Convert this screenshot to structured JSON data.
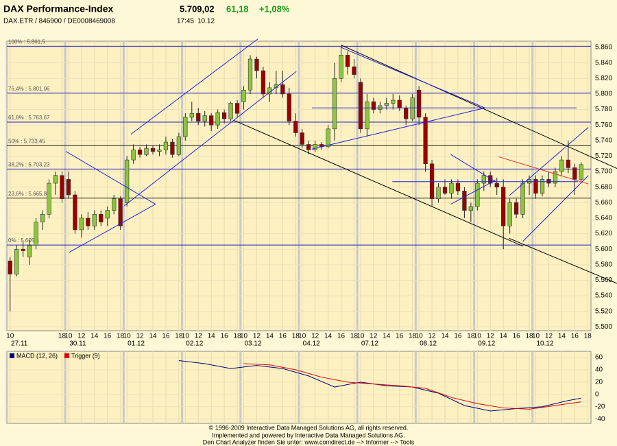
{
  "header": {
    "title": "DAX Performance-Index",
    "price": "5.709,02",
    "change": "61,18",
    "change_pct": "+1,08%",
    "ids": "DAX.ETR / 846900 / DE0008469008",
    "time": "17:45",
    "date": "10.12"
  },
  "chart_data": [
    {
      "type": "candlestick",
      "xlim": [
        -0.5,
        89.5
      ],
      "ylim": [
        5495,
        5868
      ],
      "yticks": [
        {
          "value": 5860,
          "label": "5.860"
        },
        {
          "value": 5840,
          "label": "5.840"
        },
        {
          "value": 5820,
          "label": "5.820"
        },
        {
          "value": 5800,
          "label": "5.800"
        },
        {
          "value": 5780,
          "label": "5.780"
        },
        {
          "value": 5760,
          "label": "5.760"
        },
        {
          "value": 5740,
          "label": "5.740"
        },
        {
          "value": 5720,
          "label": "5.720"
        },
        {
          "value": 5700,
          "label": "5.700"
        },
        {
          "value": 5680,
          "label": "5.680"
        },
        {
          "value": 5660,
          "label": "5.660"
        },
        {
          "value": 5640,
          "label": "5.640"
        },
        {
          "value": 5620,
          "label": "5.620"
        },
        {
          "value": 5600,
          "label": "5.600"
        },
        {
          "value": 5580,
          "label": "5.580"
        },
        {
          "value": 5560,
          "label": "5.560"
        },
        {
          "value": 5540,
          "label": "5.540"
        },
        {
          "value": 5520,
          "label": "5.520"
        },
        {
          "value": 5500,
          "label": "5.500"
        }
      ],
      "xticks": [
        {
          "value": 0,
          "label": "10"
        },
        {
          "value": 8,
          "label": "18"
        },
        {
          "value": 9,
          "label": "10"
        },
        {
          "value": 11,
          "label": "12"
        },
        {
          "value": 13,
          "label": "14"
        },
        {
          "value": 15,
          "label": "16"
        },
        {
          "value": 17,
          "label": "18"
        },
        {
          "value": 18,
          "label": "10"
        },
        {
          "value": 20,
          "label": "12"
        },
        {
          "value": 22,
          "label": "14"
        },
        {
          "value": 24,
          "label": "16"
        },
        {
          "value": 26,
          "label": "18"
        },
        {
          "value": 27,
          "label": "10"
        },
        {
          "value": 29,
          "label": "12"
        },
        {
          "value": 31,
          "label": "14"
        },
        {
          "value": 33,
          "label": "16"
        },
        {
          "value": 35,
          "label": "18"
        },
        {
          "value": 36,
          "label": "10"
        },
        {
          "value": 38,
          "label": "12"
        },
        {
          "value": 40,
          "label": "14"
        },
        {
          "value": 42,
          "label": "16"
        },
        {
          "value": 44,
          "label": "18"
        },
        {
          "value": 45,
          "label": "10"
        },
        {
          "value": 47,
          "label": "12"
        },
        {
          "value": 49,
          "label": "14"
        },
        {
          "value": 51,
          "label": "16"
        },
        {
          "value": 53,
          "label": "18"
        },
        {
          "value": 54,
          "label": "10"
        },
        {
          "value": 56,
          "label": "12"
        },
        {
          "value": 58,
          "label": "14"
        },
        {
          "value": 60,
          "label": "16"
        },
        {
          "value": 62,
          "label": "18"
        },
        {
          "value": 63,
          "label": "10"
        },
        {
          "value": 65,
          "label": "12"
        },
        {
          "value": 67,
          "label": "14"
        },
        {
          "value": 69,
          "label": "16"
        },
        {
          "value": 71,
          "label": "18"
        },
        {
          "value": 72,
          "label": "10"
        },
        {
          "value": 74,
          "label": "12"
        },
        {
          "value": 76,
          "label": "14"
        },
        {
          "value": 78,
          "label": "16"
        },
        {
          "value": 80,
          "label": "18"
        },
        {
          "value": 81,
          "label": "10"
        },
        {
          "value": 83,
          "label": "12"
        },
        {
          "value": 85,
          "label": "14"
        },
        {
          "value": 87,
          "label": "16"
        },
        {
          "value": 89,
          "label": "18"
        }
      ],
      "day_ticks": [
        {
          "value": 1,
          "label": "27.11"
        },
        {
          "value": 10,
          "label": "30.11"
        },
        {
          "value": 19,
          "label": "01.12"
        },
        {
          "value": 28,
          "label": "02.12"
        },
        {
          "value": 37,
          "label": "03.12"
        },
        {
          "value": 46,
          "label": "04.12"
        },
        {
          "value": 55,
          "label": "07.12"
        },
        {
          "value": 64,
          "label": "08.12"
        },
        {
          "value": 73,
          "label": "09.12"
        },
        {
          "value": 82,
          "label": "10.12"
        }
      ],
      "up_color": "#8cc63f",
      "down_color": "#9b0000",
      "open": [
        5585,
        5568,
        5600,
        5590,
        5605,
        5635,
        5645,
        5685,
        5695,
        5690,
        5670,
        5625,
        5640,
        5630,
        5645,
        5640,
        5650,
        5665,
        5660,
        5715,
        5728,
        5722,
        5730,
        5726,
        5728,
        5738,
        5722,
        5745,
        5770,
        5775,
        5765,
        5772,
        5760,
        5776,
        5768,
        5788,
        5790,
        5805,
        5845,
        5830,
        5800,
        5808,
        5812,
        5800,
        5765,
        5750,
        5735,
        5728,
        5735,
        5732,
        5755,
        5820,
        5850,
        5835,
        5815,
        5755,
        5790,
        5780,
        5785,
        5788,
        5792,
        5782,
        5768,
        5805,
        5770,
        5710,
        5665,
        5680,
        5672,
        5685,
        5675,
        5650,
        5655,
        5685,
        5695,
        5685,
        5680,
        5630,
        5660,
        5645,
        5685,
        5690,
        5672,
        5690,
        5685,
        5700,
        5715,
        5705,
        5690
      ],
      "high": [
        5590,
        5605,
        5610,
        5612,
        5640,
        5650,
        5690,
        5700,
        5700,
        5700,
        5675,
        5645,
        5648,
        5650,
        5650,
        5655,
        5670,
        5668,
        5720,
        5735,
        5732,
        5735,
        5733,
        5735,
        5745,
        5742,
        5750,
        5775,
        5790,
        5782,
        5778,
        5775,
        5780,
        5780,
        5790,
        5792,
        5810,
        5850,
        5848,
        5835,
        5815,
        5830,
        5830,
        5808,
        5775,
        5755,
        5740,
        5740,
        5738,
        5760,
        5840,
        5862,
        5855,
        5845,
        5820,
        5800,
        5795,
        5790,
        5795,
        5800,
        5798,
        5785,
        5800,
        5810,
        5775,
        5715,
        5685,
        5690,
        5690,
        5690,
        5680,
        5660,
        5690,
        5700,
        5700,
        5692,
        5690,
        5665,
        5665,
        5690,
        5695,
        5695,
        5695,
        5700,
        5705,
        5720,
        5740,
        5710,
        5712
      ],
      "low": [
        5520,
        5565,
        5590,
        5580,
        5600,
        5625,
        5640,
        5670,
        5660,
        5665,
        5620,
        5615,
        5625,
        5625,
        5630,
        5630,
        5645,
        5625,
        5655,
        5710,
        5718,
        5720,
        5722,
        5720,
        5722,
        5718,
        5720,
        5740,
        5765,
        5760,
        5758,
        5752,
        5755,
        5762,
        5765,
        5770,
        5780,
        5800,
        5820,
        5795,
        5790,
        5800,
        5795,
        5760,
        5745,
        5730,
        5722,
        5725,
        5728,
        5730,
        5740,
        5815,
        5825,
        5820,
        5750,
        5745,
        5775,
        5775,
        5780,
        5780,
        5778,
        5760,
        5765,
        5760,
        5700,
        5655,
        5660,
        5670,
        5665,
        5670,
        5640,
        5635,
        5650,
        5675,
        5680,
        5670,
        5600,
        5620,
        5640,
        5640,
        5670,
        5665,
        5668,
        5680,
        5680,
        5695,
        5698,
        5670,
        5685
      ],
      "close": [
        5568,
        5600,
        5598,
        5605,
        5635,
        5645,
        5685,
        5695,
        5665,
        5670,
        5625,
        5640,
        5630,
        5645,
        5635,
        5650,
        5665,
        5630,
        5715,
        5728,
        5722,
        5730,
        5726,
        5728,
        5738,
        5722,
        5745,
        5770,
        5775,
        5765,
        5772,
        5760,
        5776,
        5768,
        5788,
        5775,
        5805,
        5845,
        5830,
        5800,
        5808,
        5812,
        5800,
        5765,
        5750,
        5735,
        5728,
        5735,
        5732,
        5755,
        5820,
        5850,
        5835,
        5825,
        5755,
        5790,
        5780,
        5785,
        5788,
        5792,
        5782,
        5768,
        5795,
        5770,
        5710,
        5665,
        5680,
        5672,
        5685,
        5675,
        5650,
        5655,
        5685,
        5695,
        5685,
        5680,
        5630,
        5660,
        5645,
        5685,
        5690,
        5672,
        5690,
        5685,
        5700,
        5715,
        5705,
        5690,
        5709
      ],
      "levels": [
        {
          "value": 5861.5,
          "label": "100% : 5.861,5",
          "color": "#2020c0"
        },
        {
          "value": 5801.06,
          "label": "76,4% : 5.801,06",
          "color": "#2020c0"
        },
        {
          "value": 5763.67,
          "label": "61,8% : 5.763,67",
          "color": "#2020c0"
        },
        {
          "value": 5733.45,
          "label": "50% : 5.733,45",
          "color": "#202020"
        },
        {
          "value": 5703.23,
          "label": "38,2% : 5.703,23",
          "color": "#2020c0"
        },
        {
          "value": 5665.84,
          "label": "23,6% : 5.665,84",
          "color": "#202020"
        },
        {
          "value": 5605.4,
          "label": "0% : 5.605,4",
          "color": "#2020c0"
        }
      ],
      "trendlines": [
        {
          "color": "#2020e0",
          "points": [
            18.6,
            5748,
            38.2,
            5871
          ]
        },
        {
          "color": "#2020e0",
          "points": [
            17.6,
            5656,
            44.1,
            5829
          ]
        },
        {
          "color": "#2020e0",
          "points": [
            8.6,
            5726,
            22.4,
            5658
          ]
        },
        {
          "color": "#2020e0",
          "points": [
            9.1,
            5596,
            22.4,
            5658
          ]
        },
        {
          "color": "#000000",
          "points": [
            34.5,
            5766,
            79,
            5604
          ]
        },
        {
          "color": "#000000",
          "points": [
            76.9,
            5614,
            93.9,
            5556
          ]
        },
        {
          "color": "#000000",
          "points": [
            51,
            5863,
            93.9,
            5704
          ]
        },
        {
          "color": "#2020e0",
          "points": [
            51,
            5860,
            73.2,
            5782
          ]
        },
        {
          "color": "#2020e0",
          "points": [
            46.5,
            5782,
            87.3,
            5782
          ]
        },
        {
          "color": "#2020e0",
          "points": [
            46.5,
            5729,
            73.2,
            5782
          ]
        },
        {
          "color": "#2020e0",
          "points": [
            67.9,
            5722,
            74.8,
            5687
          ]
        },
        {
          "color": "#2020e0",
          "points": [
            67.9,
            5658,
            74.8,
            5689
          ]
        },
        {
          "color": "#2020e0",
          "points": [
            58.9,
            5687,
            87.5,
            5687
          ]
        },
        {
          "color": "#2020e0",
          "points": [
            76.9,
            5669,
            89.1,
            5757
          ]
        },
        {
          "color": "#2020e0",
          "points": [
            79,
            5610,
            89.1,
            5695
          ]
        },
        {
          "color": "#e03030",
          "points": [
            75.3,
            5719,
            89.1,
            5684
          ]
        }
      ]
    },
    {
      "type": "line",
      "xlim": [
        -0.5,
        89.5
      ],
      "ylim": [
        -47,
        70
      ],
      "yticks": [
        60,
        40,
        20,
        0,
        -20,
        -40
      ],
      "series": [
        {
          "name": "MACD (12, 26)",
          "color": "#000080",
          "x": [
            26,
            30,
            34,
            38,
            42,
            46,
            50,
            54,
            58,
            62,
            66,
            70,
            74,
            78,
            82,
            86,
            88
          ],
          "values": [
            55,
            50,
            42,
            47,
            42,
            30,
            12,
            20,
            14,
            12,
            2,
            -18,
            -27,
            -23,
            -20,
            -10,
            -6
          ]
        },
        {
          "name": "Trigger (9)",
          "color": "#e00000",
          "x": [
            36,
            40,
            44,
            48,
            52,
            56,
            60,
            64,
            68,
            72,
            76,
            80,
            84,
            88
          ],
          "values": [
            50,
            48,
            40,
            28,
            20,
            17,
            14,
            10,
            -5,
            -15,
            -22,
            -24,
            -18,
            -12
          ]
        }
      ]
    }
  ],
  "footer": [
    "© 1996-2009 Interactive Data Managed Solutions AG, all rights reserved.",
    "Implemented and powered by  Interactive Data Managed Solutions AG.",
    "Den Chart Analyzer finden Sie unter: www.comdirect.de --> Informer --> Tools"
  ]
}
